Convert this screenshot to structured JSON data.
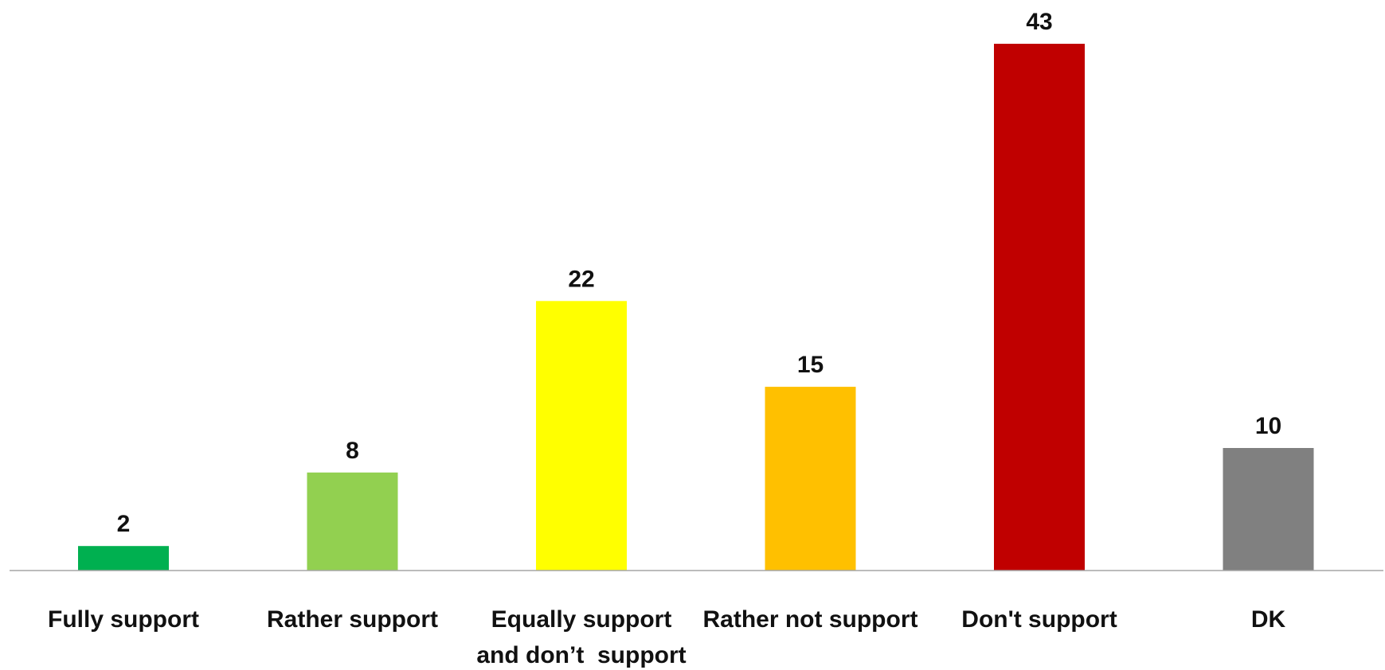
{
  "chart_data": {
    "type": "bar",
    "title": "",
    "xlabel": "",
    "ylabel": "",
    "ylim": [
      0,
      43
    ],
    "grid": false,
    "legend": "none",
    "categories": [
      [
        "Fully support"
      ],
      [
        "Rather support"
      ],
      [
        "Equally support",
        "and don’t  support"
      ],
      [
        "Rather not support"
      ],
      [
        "Don't support"
      ],
      [
        "DK"
      ]
    ],
    "values": [
      2,
      8,
      22,
      15,
      43,
      10
    ],
    "colors": [
      "#00b050",
      "#92d050",
      "#ffff00",
      "#ffc000",
      "#c00000",
      "#808080"
    ],
    "axis_color": "#a6a6a6"
  }
}
